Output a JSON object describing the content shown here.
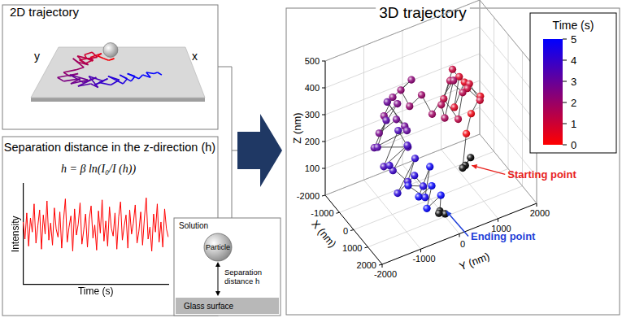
{
  "panels": {
    "trajectory_2d": {
      "title": "2D trajectory",
      "axis_labels": {
        "x": "x",
        "y": "y"
      }
    },
    "separation": {
      "title": "Separation distance in the z-direction (h)",
      "formula": "h = β ln(I₀/I (h))",
      "chart": {
        "type": "line",
        "x_label": "Time (s)",
        "y_label": "Intensity",
        "ylim": [
          0,
          1
        ],
        "tick_labels": false,
        "grid": false,
        "color": "#ff0000",
        "values": [
          0.62,
          0.45,
          0.71,
          0.38,
          0.66,
          0.52,
          0.8,
          0.41,
          0.58,
          0.74,
          0.35,
          0.69,
          0.5,
          0.83,
          0.44,
          0.61,
          0.39,
          0.76,
          0.55,
          0.47,
          0.72,
          0.36,
          0.64,
          0.85,
          0.42,
          0.57,
          0.68,
          0.33,
          0.75,
          0.49,
          0.6,
          0.81,
          0.4,
          0.54,
          0.7,
          0.37,
          0.65,
          0.78,
          0.46,
          0.59,
          0.34,
          0.73,
          0.51,
          0.84,
          0.43,
          0.63,
          0.38,
          0.77,
          0.56,
          0.48,
          0.71,
          0.35,
          0.67,
          0.82,
          0.44,
          0.58,
          0.69,
          0.36,
          0.74,
          0.5,
          0.61,
          0.79,
          0.41,
          0.53,
          0.72,
          0.39,
          0.66,
          0.86,
          0.45,
          0.57,
          0.33,
          0.7,
          0.52,
          0.8,
          0.42,
          0.62,
          0.37,
          0.75,
          0.55,
          0.47
        ]
      }
    },
    "schematic": {
      "solution": "Solution",
      "particle": "Particle",
      "distance": [
        "Separation",
        "distance h"
      ],
      "surface": "Glass surface"
    }
  },
  "chart_data": {
    "type": "scatter3d",
    "title": "3D trajectory",
    "x_label": "X (nm)",
    "y_label": "Y (nm)",
    "z_label": "Z (nm)",
    "xlim": [
      -2000,
      2000
    ],
    "xticks": [
      -2000,
      -1000,
      0,
      1000,
      2000
    ],
    "ylim": [
      -2000,
      2000
    ],
    "yticks": [
      -2000,
      -1000,
      0,
      1000,
      2000
    ],
    "zlim": [
      0,
      500
    ],
    "zticks": [
      100,
      200,
      300,
      400,
      500
    ],
    "grid": true,
    "colorbar": {
      "title": "Time (s)",
      "clim": [
        0,
        5
      ],
      "cticks": [
        0,
        1,
        2,
        3,
        4,
        5
      ],
      "colors": [
        "#ff0000",
        "#0000ff"
      ]
    },
    "start": {
      "annotation": "Starting point",
      "text_color": "#e8201c",
      "color": "#000000",
      "points": [
        {
          "t": 0.0,
          "x": -300,
          "y": 1000,
          "z": 50
        },
        {
          "t": 0.05,
          "x": -200,
          "y": 1100,
          "z": 80
        },
        {
          "t": 0.1,
          "x": -350,
          "y": 950,
          "z": 40
        }
      ]
    },
    "points": [
      {
        "t": 0.2,
        "x": -500,
        "y": 1100,
        "z": 150
      },
      {
        "t": 0.3,
        "x": -700,
        "y": 1300,
        "z": 200
      },
      {
        "t": 0.4,
        "x": -600,
        "y": 1500,
        "z": 260
      },
      {
        "t": 0.5,
        "x": -900,
        "y": 1200,
        "z": 310
      },
      {
        "t": 0.6,
        "x": -800,
        "y": 900,
        "z": 240
      },
      {
        "t": 0.7,
        "x": -1000,
        "y": 1100,
        "z": 330
      },
      {
        "t": 0.8,
        "x": -1100,
        "y": 1400,
        "z": 280
      },
      {
        "t": 0.9,
        "x": -900,
        "y": 1600,
        "z": 220
      },
      {
        "t": 1.0,
        "x": -700,
        "y": 1200,
        "z": 300
      },
      {
        "t": 1.1,
        "x": -1200,
        "y": 1000,
        "z": 350
      },
      {
        "t": 1.2,
        "x": -1000,
        "y": 700,
        "z": 270
      },
      {
        "t": 1.3,
        "x": -800,
        "y": 1000,
        "z": 190
      },
      {
        "t": 1.4,
        "x": -1300,
        "y": 1300,
        "z": 240
      },
      {
        "t": 1.5,
        "x": -1100,
        "y": 900,
        "z": 320
      },
      {
        "t": 1.6,
        "x": -900,
        "y": 600,
        "z": 260
      },
      {
        "t": 1.7,
        "x": -1200,
        "y": 800,
        "z": 180
      },
      {
        "t": 1.8,
        "x": -1400,
        "y": 1100,
        "z": 290
      },
      {
        "t": 1.9,
        "x": -1000,
        "y": 400,
        "z": 230
      },
      {
        "t": 2.0,
        "x": -1200,
        "y": 200,
        "z": 300
      },
      {
        "t": 2.1,
        "x": -1500,
        "y": 0,
        "z": 250
      },
      {
        "t": 2.2,
        "x": -1300,
        "y": -300,
        "z": 340
      },
      {
        "t": 2.3,
        "x": -1100,
        "y": -100,
        "z": 380
      },
      {
        "t": 2.4,
        "x": -1600,
        "y": -400,
        "z": 300
      },
      {
        "t": 2.5,
        "x": -1400,
        "y": -700,
        "z": 260
      },
      {
        "t": 2.6,
        "x": -1000,
        "y": -500,
        "z": 320
      },
      {
        "t": 2.7,
        "x": -1200,
        "y": -900,
        "z": 220
      },
      {
        "t": 2.8,
        "x": -800,
        "y": -600,
        "z": 280
      },
      {
        "t": 2.9,
        "x": -1300,
        "y": -200,
        "z": 200
      },
      {
        "t": 3.0,
        "x": -900,
        "y": -800,
        "z": 350
      },
      {
        "t": 3.1,
        "x": -600,
        "y": -400,
        "z": 240
      },
      {
        "t": 3.2,
        "x": -1000,
        "y": -1100,
        "z": 190
      },
      {
        "t": 3.3,
        "x": -700,
        "y": -900,
        "z": 300
      },
      {
        "t": 3.4,
        "x": -500,
        "y": -1200,
        "z": 230
      },
      {
        "t": 3.5,
        "x": -800,
        "y": -300,
        "z": 160
      },
      {
        "t": 3.6,
        "x": -400,
        "y": -700,
        "z": 270
      },
      {
        "t": 3.7,
        "x": -600,
        "y": -1000,
        "z": 140
      },
      {
        "t": 3.8,
        "x": -300,
        "y": -500,
        "z": 210
      },
      {
        "t": 3.9,
        "x": -500,
        "y": -800,
        "z": 120
      },
      {
        "t": 4.0,
        "x": -200,
        "y": -1000,
        "z": 170
      },
      {
        "t": 4.1,
        "x": 0,
        "y": -600,
        "z": 100
      },
      {
        "t": 4.2,
        "x": -300,
        "y": -300,
        "z": 150
      },
      {
        "t": 4.3,
        "x": 100,
        "y": -900,
        "z": 80
      },
      {
        "t": 4.4,
        "x": 200,
        "y": -500,
        "z": 130
      },
      {
        "t": 4.5,
        "x": 0,
        "y": -200,
        "z": 60
      },
      {
        "t": 4.6,
        "x": 300,
        "y": -700,
        "z": 110
      },
      {
        "t": 4.7,
        "x": 400,
        "y": -300,
        "z": 50
      },
      {
        "t": 4.8,
        "x": 200,
        "y": -100,
        "z": 140
      },
      {
        "t": 4.9,
        "x": 500,
        "y": -500,
        "z": 70
      },
      {
        "t": 5.0,
        "x": 600,
        "y": -200,
        "z": 100
      },
      {
        "t": 5.1,
        "x": 800,
        "y": -400,
        "z": 40
      },
      {
        "t": 5.2,
        "x": 700,
        "y": 0,
        "z": 60
      }
    ],
    "end": {
      "annotation": "Ending point",
      "text_color": "#1f3fd8",
      "color": "#000000",
      "points": [
        {
          "t": 5.3,
          "x": 900,
          "y": -100,
          "z": 20
        },
        {
          "t": 5.35,
          "x": 1000,
          "y": 0,
          "z": 10
        },
        {
          "t": 5.4,
          "x": 1100,
          "y": -200,
          "z": 30
        }
      ]
    }
  }
}
